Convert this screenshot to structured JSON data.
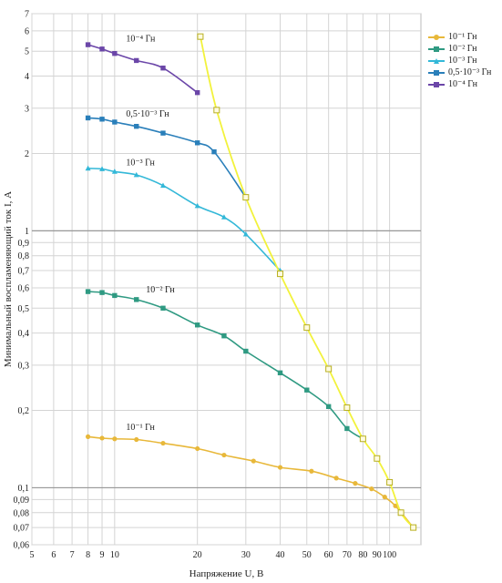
{
  "chart_data": {
    "type": "line",
    "title": "",
    "xlabel": "Напряжение U, В",
    "ylabel": "Минимальный воспламеняющий ток I, А",
    "xscale": "log",
    "yscale": "log",
    "xlim": [
      5,
      130
    ],
    "ylim": [
      0.06,
      7
    ],
    "grid": true,
    "legend_position": "right",
    "x_ticks": [
      {
        "value": 5,
        "label": "5"
      },
      {
        "value": 6,
        "label": "6"
      },
      {
        "value": 7,
        "label": "7"
      },
      {
        "value": 8,
        "label": "8"
      },
      {
        "value": 9,
        "label": "9"
      },
      {
        "value": 10,
        "label": "10"
      },
      {
        "value": 20,
        "label": "20"
      },
      {
        "value": 30,
        "label": "30"
      },
      {
        "value": 40,
        "label": "40"
      },
      {
        "value": 50,
        "label": "50"
      },
      {
        "value": 60,
        "label": "60"
      },
      {
        "value": 70,
        "label": "70"
      },
      {
        "value": 80,
        "label": "80"
      },
      {
        "value": 90,
        "label": "90"
      },
      {
        "value": 100,
        "label": "100"
      }
    ],
    "y_ticks": [
      {
        "value": 0.06,
        "label": "0,06"
      },
      {
        "value": 0.07,
        "label": "0,07"
      },
      {
        "value": 0.08,
        "label": "0,08"
      },
      {
        "value": 0.09,
        "label": "0,09"
      },
      {
        "value": 0.1,
        "label": "0,1"
      },
      {
        "value": 0.2,
        "label": "0,2"
      },
      {
        "value": 0.3,
        "label": "0,3"
      },
      {
        "value": 0.4,
        "label": "0,4"
      },
      {
        "value": 0.5,
        "label": "0,5"
      },
      {
        "value": 0.6,
        "label": "0,6"
      },
      {
        "value": 0.7,
        "label": "0,7"
      },
      {
        "value": 0.8,
        "label": "0,8"
      },
      {
        "value": 0.9,
        "label": "0,9"
      },
      {
        "value": 1,
        "label": "1"
      },
      {
        "value": 2,
        "label": "2"
      },
      {
        "value": 3,
        "label": "3"
      },
      {
        "value": 4,
        "label": "4"
      },
      {
        "value": 5,
        "label": "5"
      },
      {
        "value": 6,
        "label": "6"
      },
      {
        "value": 7,
        "label": "7"
      }
    ],
    "series": [
      {
        "name": "10⁻¹ Гн",
        "color": "#e8b83a",
        "marker": "circle",
        "x": [
          8,
          9,
          10,
          12,
          15,
          20,
          25,
          32,
          40,
          52,
          64,
          75,
          86,
          96,
          105,
          122
        ],
        "y": [
          0.158,
          0.156,
          0.155,
          0.154,
          0.149,
          0.142,
          0.134,
          0.127,
          0.12,
          0.116,
          0.109,
          0.104,
          0.099,
          0.092,
          0.085,
          0.07
        ]
      },
      {
        "name": "10⁻² Гн",
        "color": "#2f9a82",
        "marker": "square",
        "x": [
          8,
          9,
          10,
          12,
          15,
          20,
          25,
          30,
          40,
          50,
          60,
          70,
          80
        ],
        "y": [
          0.58,
          0.575,
          0.56,
          0.54,
          0.5,
          0.43,
          0.39,
          0.34,
          0.28,
          0.24,
          0.207,
          0.17,
          0.155
        ]
      },
      {
        "name": "10⁻³ Гн",
        "color": "#33b8d8",
        "marker": "triangle",
        "x": [
          8,
          9,
          10,
          12,
          15,
          20,
          25,
          30,
          40
        ],
        "y": [
          1.75,
          1.74,
          1.7,
          1.65,
          1.5,
          1.25,
          1.13,
          0.97,
          0.7
        ]
      },
      {
        "name": "0,5·10⁻³ Гн",
        "color": "#2a7fba",
        "marker": "square",
        "x": [
          8,
          9,
          10,
          12,
          15,
          20,
          23,
          30
        ],
        "y": [
          2.75,
          2.72,
          2.65,
          2.55,
          2.4,
          2.2,
          2.03,
          1.35
        ]
      },
      {
        "name": "10⁻⁴ Гн",
        "color": "#6b46a8",
        "marker": "square",
        "x": [
          8,
          9,
          10,
          12,
          15,
          20
        ],
        "y": [
          5.3,
          5.1,
          4.9,
          4.6,
          4.3,
          3.45
        ]
      },
      {
        "name": "",
        "color": "#f2f23c",
        "marker": "square-open",
        "x": [
          20.5,
          23.5,
          30,
          40,
          50,
          60,
          70,
          80,
          90,
          100,
          110,
          122
        ],
        "y": [
          5.7,
          2.95,
          1.35,
          0.68,
          0.42,
          0.29,
          0.205,
          0.155,
          0.13,
          0.105,
          0.08,
          0.07
        ]
      }
    ],
    "annotations": [
      {
        "text": "10⁻⁴ Гн",
        "x": 11,
        "y": 5.45
      },
      {
        "text": "0,5·10⁻³ Гн",
        "x": 11,
        "y": 2.78
      },
      {
        "text": "10⁻³ Гн",
        "x": 11,
        "y": 1.8
      },
      {
        "text": "10⁻² Гн",
        "x": 13,
        "y": 0.575
      },
      {
        "text": "10⁻¹ Гн",
        "x": 11,
        "y": 0.168
      }
    ]
  }
}
